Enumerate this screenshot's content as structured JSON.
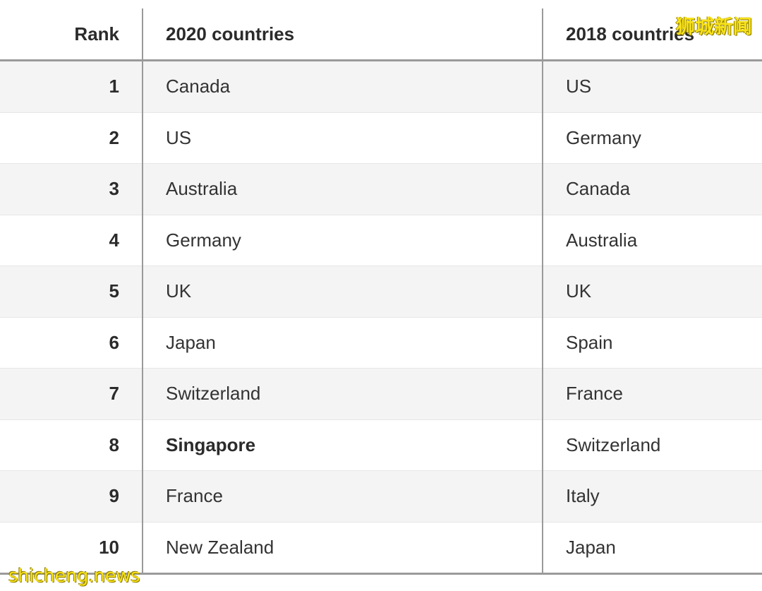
{
  "table": {
    "headers": {
      "rank": "Rank",
      "col_2020": "2020 countries",
      "col_2018": "2018 countries"
    },
    "rows": [
      {
        "rank": "1",
        "c2020": "Canada",
        "c2018": "US"
      },
      {
        "rank": "2",
        "c2020": "US",
        "c2018": "Germany"
      },
      {
        "rank": "3",
        "c2020": "Australia",
        "c2018": "Canada"
      },
      {
        "rank": "4",
        "c2020": "Germany",
        "c2018": "Australia"
      },
      {
        "rank": "5",
        "c2020": "UK",
        "c2018": "UK"
      },
      {
        "rank": "6",
        "c2020": "Japan",
        "c2018": "Spain"
      },
      {
        "rank": "7",
        "c2020": "Switzerland",
        "c2018": "France"
      },
      {
        "rank": "8",
        "c2020": "Singapore",
        "c2018": "Switzerland",
        "highlight": true
      },
      {
        "rank": "9",
        "c2020": "France",
        "c2018": "Italy"
      },
      {
        "rank": "10",
        "c2020": "New Zealand",
        "c2018": "Japan"
      }
    ]
  },
  "watermarks": {
    "top_right": "狮城新闻",
    "bottom_left": "shicheng.news"
  },
  "colors": {
    "header_rule": "#9a9a9a",
    "stripe": "#f4f4f4",
    "watermark": "#f7e11b"
  }
}
